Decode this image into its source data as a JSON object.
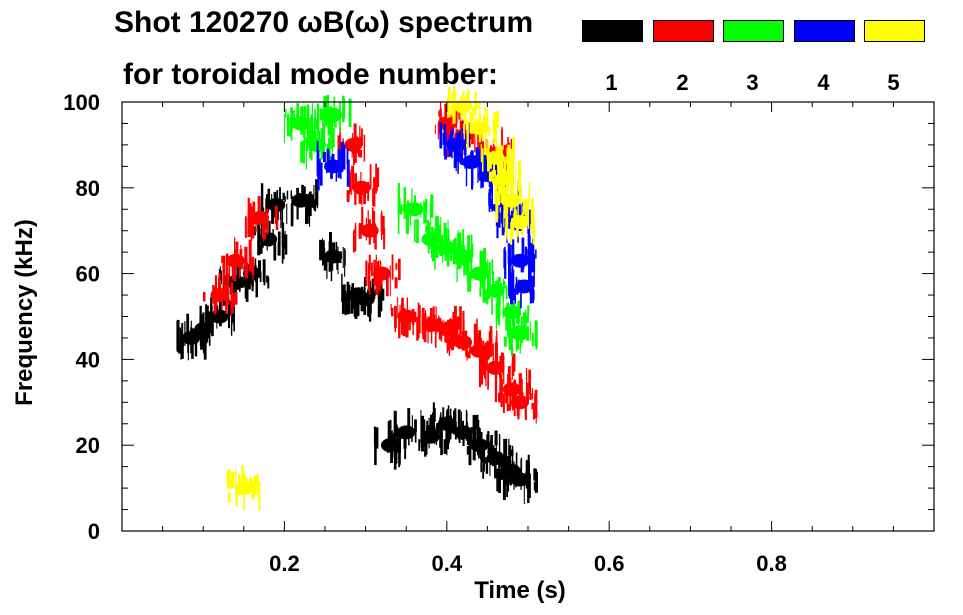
{
  "title_line1": "Shot 120270 ωB(ω) spectrum",
  "title_line2": "for toroidal mode number:",
  "legend": [
    {
      "label": "1",
      "color": "#000000"
    },
    {
      "label": "2",
      "color": "#ff0000"
    },
    {
      "label": "3",
      "color": "#00ff00"
    },
    {
      "label": "4",
      "color": "#0000ff"
    },
    {
      "label": "5",
      "color": "#ffff00"
    }
  ],
  "chart_data": {
    "type": "scatter",
    "title": "Shot 120270 ωB(ω) spectrum",
    "xlabel": "Time (s)",
    "ylabel": "Frequency (kHz)",
    "xlim": [
      0.0,
      1.0
    ],
    "ylim": [
      0,
      100
    ],
    "x_ticks": [
      0.2,
      0.4,
      0.6,
      0.8
    ],
    "x_tick_labels": [
      "0.2",
      "0.4",
      "0.6",
      "0.8"
    ],
    "y_ticks": [
      0,
      20,
      40,
      60,
      80,
      100
    ],
    "y_tick_labels": [
      "0",
      "20",
      "40",
      "60",
      "80",
      "100"
    ],
    "grid": false,
    "legend_placement": "top",
    "series": [
      {
        "name": "1",
        "color": "#000000",
        "points": [
          {
            "t": 0.085,
            "f": 45
          },
          {
            "t": 0.1,
            "f": 47
          },
          {
            "t": 0.12,
            "f": 50
          },
          {
            "t": 0.14,
            "f": 58
          },
          {
            "t": 0.16,
            "f": 60
          },
          {
            "t": 0.18,
            "f": 68
          },
          {
            "t": 0.19,
            "f": 76
          },
          {
            "t": 0.22,
            "f": 77
          },
          {
            "t": 0.26,
            "f": 64
          },
          {
            "t": 0.29,
            "f": 55
          },
          {
            "t": 0.3,
            "f": 54
          },
          {
            "t": 0.33,
            "f": 20
          },
          {
            "t": 0.35,
            "f": 23
          },
          {
            "t": 0.38,
            "f": 22
          },
          {
            "t": 0.4,
            "f": 25
          },
          {
            "t": 0.42,
            "f": 23
          },
          {
            "t": 0.44,
            "f": 20
          },
          {
            "t": 0.46,
            "f": 17
          },
          {
            "t": 0.48,
            "f": 14
          },
          {
            "t": 0.49,
            "f": 12
          }
        ]
      },
      {
        "name": "2",
        "color": "#ff0000",
        "points": [
          {
            "t": 0.12,
            "f": 55
          },
          {
            "t": 0.14,
            "f": 63
          },
          {
            "t": 0.17,
            "f": 73
          },
          {
            "t": 0.285,
            "f": 90
          },
          {
            "t": 0.295,
            "f": 80
          },
          {
            "t": 0.305,
            "f": 70
          },
          {
            "t": 0.32,
            "f": 60
          },
          {
            "t": 0.35,
            "f": 50
          },
          {
            "t": 0.38,
            "f": 48
          },
          {
            "t": 0.4,
            "f": 47
          },
          {
            "t": 0.42,
            "f": 44
          },
          {
            "t": 0.44,
            "f": 42
          },
          {
            "t": 0.46,
            "f": 38
          },
          {
            "t": 0.48,
            "f": 33
          },
          {
            "t": 0.49,
            "f": 30
          },
          {
            "t": 0.4,
            "f": 95
          },
          {
            "t": 0.42,
            "f": 92
          },
          {
            "t": 0.46,
            "f": 88
          }
        ]
      },
      {
        "name": "3",
        "color": "#00ff00",
        "points": [
          {
            "t": 0.22,
            "f": 95
          },
          {
            "t": 0.24,
            "f": 90
          },
          {
            "t": 0.26,
            "f": 97
          },
          {
            "t": 0.36,
            "f": 75
          },
          {
            "t": 0.38,
            "f": 68
          },
          {
            "t": 0.4,
            "f": 66
          },
          {
            "t": 0.42,
            "f": 64
          },
          {
            "t": 0.44,
            "f": 60
          },
          {
            "t": 0.46,
            "f": 56
          },
          {
            "t": 0.48,
            "f": 51
          },
          {
            "t": 0.49,
            "f": 46
          }
        ]
      },
      {
        "name": "4",
        "color": "#0000ff",
        "points": [
          {
            "t": 0.26,
            "f": 85
          },
          {
            "t": 0.41,
            "f": 90
          },
          {
            "t": 0.43,
            "f": 86
          },
          {
            "t": 0.45,
            "f": 83
          },
          {
            "t": 0.47,
            "f": 77
          },
          {
            "t": 0.48,
            "f": 72
          },
          {
            "t": 0.49,
            "f": 63
          },
          {
            "t": 0.495,
            "f": 57
          }
        ]
      },
      {
        "name": "5",
        "color": "#ffff00",
        "points": [
          {
            "t": 0.42,
            "f": 99
          },
          {
            "t": 0.44,
            "f": 94
          },
          {
            "t": 0.46,
            "f": 87
          },
          {
            "t": 0.47,
            "f": 82
          },
          {
            "t": 0.48,
            "f": 77
          },
          {
            "t": 0.49,
            "f": 72
          },
          {
            "t": 0.15,
            "f": 10
          }
        ]
      }
    ]
  }
}
